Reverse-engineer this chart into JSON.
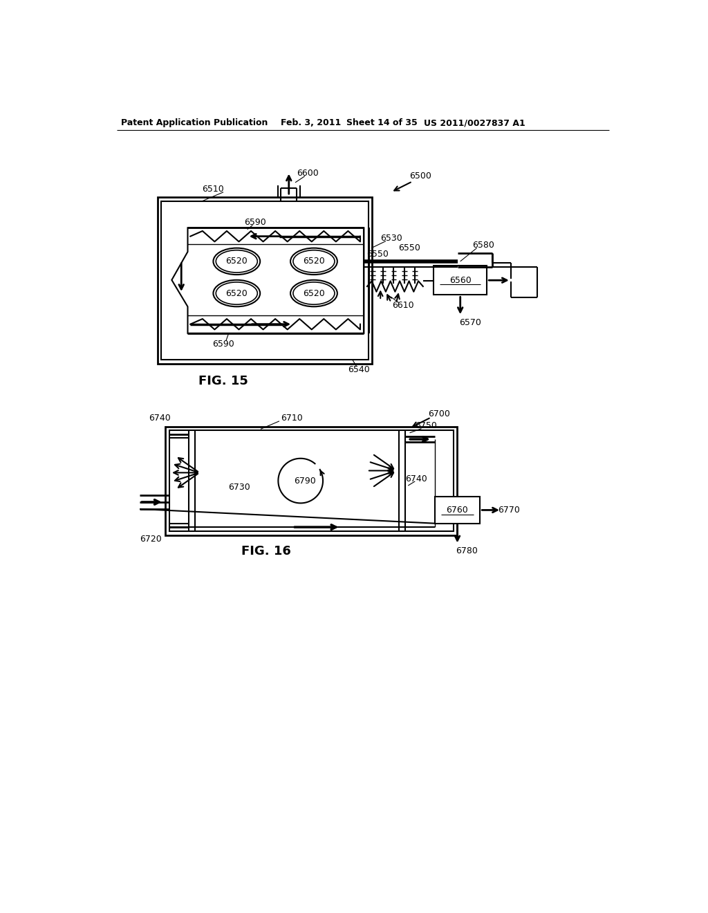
{
  "bg_color": "#ffffff",
  "line_color": "#000000",
  "header_text": "Patent Application Publication",
  "header_date": "Feb. 3, 2011",
  "header_sheet": "Sheet 14 of 35",
  "header_patent": "US 2011/0027837 A1",
  "fig15_label": "FIG. 15",
  "fig16_label": "FIG. 16"
}
